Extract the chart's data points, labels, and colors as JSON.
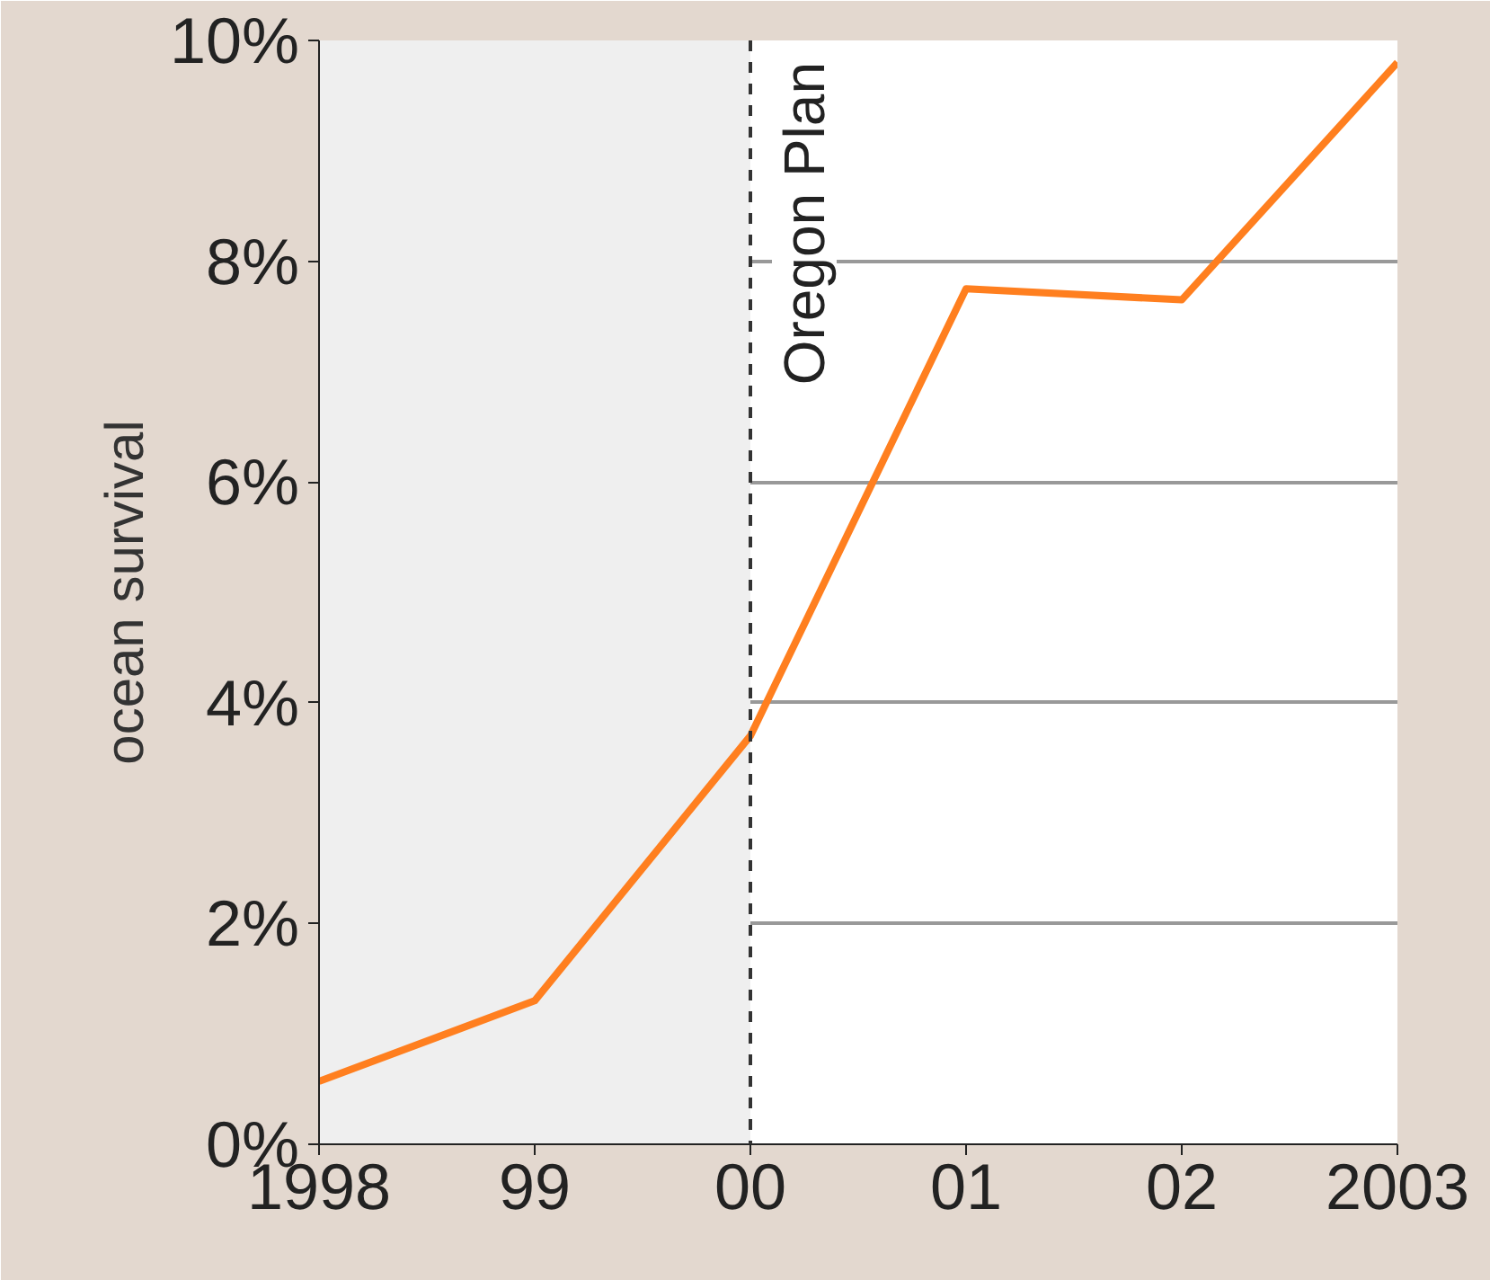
{
  "chart_data": {
    "type": "line",
    "ylabel": "ocean survival",
    "x": [
      1998,
      1999,
      2000,
      2001,
      2002,
      2003
    ],
    "series": [
      {
        "color": "#ff7f1f",
        "values": [
          0.57,
          1.3,
          3.7,
          7.75,
          7.65,
          9.8
        ]
      }
    ],
    "xlim": [
      1998,
      2003
    ],
    "xticks": [
      {
        "value": 1998,
        "label": "1998"
      },
      {
        "value": 1999,
        "label": "99"
      },
      {
        "value": 2000,
        "label": "00"
      },
      {
        "value": 2001,
        "label": "01"
      },
      {
        "value": 2002,
        "label": "02"
      },
      {
        "value": 2003,
        "label": "2003"
      }
    ],
    "ylim": [
      0,
      10
    ],
    "yticks": [
      {
        "value": 0,
        "label": "0%"
      },
      {
        "value": 2,
        "label": "2%"
      },
      {
        "value": 4,
        "label": "4%"
      },
      {
        "value": 6,
        "label": "6%"
      },
      {
        "value": 8,
        "label": "8%"
      },
      {
        "value": 10,
        "label": "10%"
      }
    ],
    "grid": "y",
    "marker": "none",
    "line_style": "solid",
    "ref_lines": [
      {
        "axis": "x",
        "value": 2000,
        "label": "Oregon Plan",
        "color": "#333333",
        "line_style": "dashed"
      }
    ],
    "bands": [
      {
        "axis": "x",
        "from": 1998,
        "to": 2000,
        "color": "#efefef"
      }
    ]
  }
}
